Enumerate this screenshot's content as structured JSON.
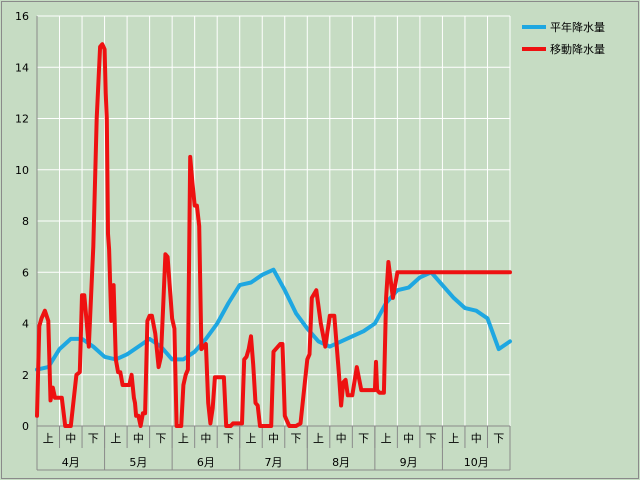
{
  "chart_data": {
    "type": "line",
    "title": "",
    "xlabel": "",
    "ylabel": "",
    "ylim": [
      0,
      16
    ],
    "yticks": [
      0,
      2,
      4,
      6,
      8,
      10,
      12,
      14,
      16
    ],
    "grid": true,
    "legend_position": "right",
    "months": [
      "4月",
      "5月",
      "6月",
      "7月",
      "8月",
      "9月",
      "10月"
    ],
    "sub_periods": [
      "上",
      "中",
      "下"
    ],
    "colors": {
      "background": "#c6dcc3",
      "grid": "#ffffff",
      "heikin": "#1ea7e1",
      "ido": "#ee1111"
    },
    "series": [
      {
        "name": "平年降水量",
        "key": "heikin",
        "x": [
          0,
          0.5,
          1,
          1.5,
          2,
          2.5,
          3,
          3.5,
          4,
          4.5,
          5,
          5.5,
          6,
          6.5,
          7,
          7.5,
          8,
          8.5,
          9,
          9.5,
          10,
          10.5,
          11,
          11.5,
          12,
          12.5,
          13,
          13.5,
          14,
          14.5,
          15,
          15.5,
          16,
          16.5,
          17,
          17.5,
          18,
          18.5,
          19,
          19.5,
          20,
          20.5,
          21
        ],
        "y": [
          2.2,
          2.3,
          3.0,
          3.4,
          3.4,
          3.1,
          2.7,
          2.6,
          2.8,
          3.1,
          3.4,
          3.1,
          2.6,
          2.6,
          2.9,
          3.4,
          4.0,
          4.8,
          5.5,
          5.6,
          5.9,
          6.1,
          5.3,
          4.4,
          3.8,
          3.3,
          3.1,
          3.3,
          3.5,
          3.7,
          4.0,
          4.8,
          5.3,
          5.4,
          5.8,
          6.0,
          5.5,
          5.0,
          4.6,
          4.5,
          4.2,
          3.0,
          3.3
        ]
      },
      {
        "name": "移動降水量",
        "key": "ido",
        "x": [
          0,
          0.1,
          0.2,
          0.35,
          0.5,
          0.6,
          0.7,
          0.8,
          0.9,
          1.0,
          1.1,
          1.25,
          1.5,
          1.75,
          1.9,
          2.0,
          2.1,
          2.3,
          2.5,
          2.65,
          2.8,
          2.9,
          3.0,
          3.05,
          3.1,
          3.15,
          3.2,
          3.3,
          3.4,
          3.5,
          3.6,
          3.7,
          3.8,
          3.9,
          4.0,
          4.1,
          4.2,
          4.3,
          4.35,
          4.4,
          4.5,
          4.6,
          4.7,
          4.8,
          4.9,
          5.0,
          5.1,
          5.25,
          5.4,
          5.5,
          5.6,
          5.7,
          5.8,
          6.0,
          6.1,
          6.2,
          6.3,
          6.4,
          6.5,
          6.6,
          6.7,
          6.8,
          6.9,
          7.0,
          7.1,
          7.2,
          7.3,
          7.4,
          7.5,
          7.6,
          7.7,
          7.8,
          7.9,
          8.0,
          8.1,
          8.2,
          8.3,
          8.4,
          8.5,
          8.6,
          8.7,
          8.8,
          8.9,
          9.0,
          9.1,
          9.2,
          9.3,
          9.4,
          9.5,
          9.6,
          9.7,
          9.8,
          9.9,
          10.0,
          10.1,
          10.2,
          10.3,
          10.4,
          10.5,
          10.6,
          10.7,
          10.8,
          10.9,
          11.0,
          11.1,
          11.2,
          11.3,
          11.5,
          11.7,
          12.0,
          12.1,
          12.2,
          12.4,
          12.6,
          12.8,
          13.0,
          13.2,
          13.4,
          13.5,
          13.6,
          13.7,
          13.8,
          13.9,
          14.0,
          14.2,
          14.4,
          14.6,
          14.8,
          15.0,
          15.05,
          15.1,
          15.2,
          15.4,
          15.5,
          15.6,
          15.8,
          16.0,
          16.2,
          16.4,
          16.5,
          16.6,
          16.7,
          16.8,
          16.9,
          17.0,
          17.1,
          17.2,
          17.3,
          17.4,
          17.5,
          17.6,
          17.7,
          17.8,
          17.9,
          18.0,
          18.1,
          18.2,
          18.3,
          18.4,
          18.5,
          18.6,
          18.7,
          18.8,
          18.9,
          19.0,
          19.1,
          19.2,
          19.3,
          19.4,
          19.5,
          19.6,
          19.7,
          19.8,
          19.9,
          20.0,
          20.1,
          20.2,
          20.3,
          20.4,
          20.5,
          20.6,
          20.7,
          20.8,
          20.85,
          20.9,
          20.95,
          21.0
        ],
        "y": [
          0.4,
          3.9,
          4.2,
          4.5,
          4.1,
          1.0,
          1.5,
          1.1,
          1.1,
          1.1,
          1.1,
          0.0,
          0.0,
          2.0,
          2.1,
          5.1,
          5.1,
          3.1,
          7.0,
          12.0,
          14.8,
          14.9,
          14.7,
          13.0,
          12.0,
          7.5,
          6.9,
          4.1,
          5.5,
          2.6,
          2.1,
          2.1,
          1.6,
          1.6,
          1.6,
          1.6,
          2.0,
          1.1,
          0.9,
          0.4,
          0.4,
          0.0,
          0.5,
          0.5,
          4.1,
          4.3,
          4.3,
          3.6,
          2.3,
          2.7,
          4.6,
          6.7,
          6.6,
          4.2,
          3.8,
          0.0,
          0.0,
          0.0,
          1.6,
          2.0,
          2.2,
          10.5,
          9.5,
          8.6,
          8.6,
          7.8,
          3.0,
          3.1,
          3.2,
          0.9,
          0.1,
          0.7,
          1.9,
          1.9,
          1.9,
          1.9,
          1.9,
          0.0,
          0.0,
          0.0,
          0.1,
          0.1,
          0.1,
          0.1,
          0.1,
          2.6,
          2.7,
          3.0,
          3.5,
          2.4,
          0.9,
          0.8,
          0.0,
          0.0,
          0.0,
          0.0,
          0.0,
          0.0,
          2.9,
          3.0,
          3.1,
          3.2,
          3.2,
          0.4,
          0.2,
          0.0,
          0.0,
          0.0,
          0.1,
          2.6,
          2.8,
          5.0,
          5.3,
          4.0,
          3.1,
          4.3,
          4.3,
          2.1,
          0.8,
          1.7,
          1.8,
          1.2,
          1.2,
          1.2,
          2.3,
          1.4,
          1.4,
          1.4,
          1.4,
          2.5,
          1.4,
          1.3,
          1.3,
          5.0,
          6.4,
          5.0,
          6.0,
          6.0,
          6.0,
          6.0,
          6.0,
          6.0,
          6.0,
          6.0,
          6.0,
          6.0,
          6.0,
          6.0,
          6.0,
          6.0,
          6.0,
          6.0,
          6.0,
          6.0,
          6.0,
          6.0,
          6.0,
          6.0,
          6.0,
          6.0,
          6.0,
          6.0,
          6.0,
          6.0,
          6.0,
          6.0,
          6.0,
          6.0,
          6.0,
          6.0,
          6.0,
          6.0,
          6.0,
          6.0,
          6.0,
          6.0,
          6.0,
          6.0,
          6.0,
          6.0,
          6.0,
          6.0,
          6.0,
          6.0,
          6.0,
          6.0,
          6.0
        ]
      }
    ]
  }
}
